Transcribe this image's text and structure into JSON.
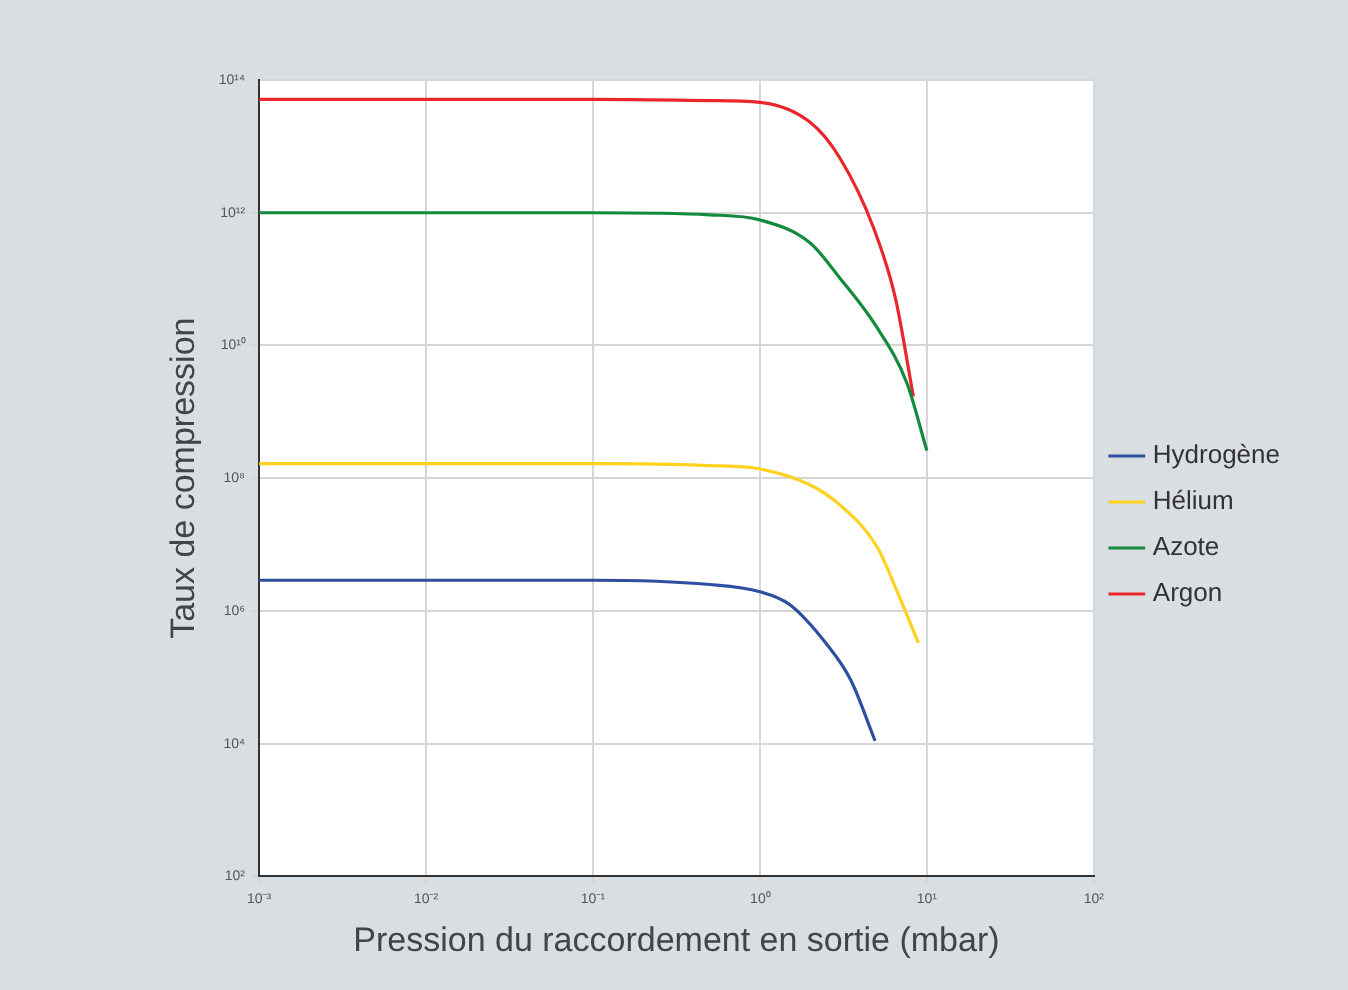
{
  "chart_data": {
    "type": "line",
    "xlabel": "Pression du raccordement en sortie (mbar)",
    "ylabel": "Taux de compression",
    "log": "xy",
    "grid": true,
    "legend": "right",
    "marker": "none",
    "line_style": "solid",
    "xlim": [
      0.001,
      100
    ],
    "xticks": [
      {
        "value": 0.001,
        "label": "10⁻³"
      },
      {
        "value": 0.01,
        "label": "10⁻²"
      },
      {
        "value": 0.1,
        "label": "10⁻¹"
      },
      {
        "value": 1,
        "label": "10⁰"
      },
      {
        "value": 10,
        "label": "10¹"
      },
      {
        "value": 100,
        "label": "10²"
      }
    ],
    "ylim": [
      100,
      100000000000000
    ],
    "yticks": [
      {
        "value": 100,
        "label": "10²"
      },
      {
        "value": 10000,
        "label": "10⁴"
      },
      {
        "value": 1000000,
        "label": "10⁶"
      },
      {
        "value": 100000000,
        "label": "10⁸"
      },
      {
        "value": 10000000000,
        "label": "10¹⁰"
      },
      {
        "value": 1000000000000,
        "label": "10¹²"
      },
      {
        "value": 100000000000000,
        "label": "10¹⁴"
      }
    ],
    "series": [
      {
        "name": "Hydrogène",
        "color": "#2e4fa0",
        "x": [
          0.001,
          0.1,
          0.5,
          1,
          1.5,
          2.5,
          3.5,
          4.9
        ],
        "values": [
          2900000,
          2900000,
          2500000,
          1950000,
          1260000,
          320000,
          91000,
          11000
        ]
      },
      {
        "name": "Hélium",
        "color": "#ffd21f",
        "x": [
          0.001,
          0.1,
          0.5,
          1,
          2,
          3,
          5,
          6.8,
          8.9
        ],
        "values": [
          166000000,
          166000000,
          155000000,
          138000000,
          79000000,
          40000000,
          9500000,
          1700000,
          330000
        ]
      },
      {
        "name": "Azote",
        "color": "#138a3e",
        "x": [
          0.001,
          0.1,
          0.5,
          1,
          2,
          3,
          5,
          7.6,
          10
        ],
        "values": [
          1000000000000,
          1000000000000,
          930000000000,
          780000000000,
          350000000000,
          105000000000,
          19000000000,
          2700000000,
          260000000
        ]
      },
      {
        "name": "Argon",
        "color": "#e8262b",
        "x": [
          0.001,
          0.1,
          0.5,
          1,
          2,
          3,
          4.8,
          6.5,
          8.3
        ],
        "values": [
          51000000000000,
          51000000000000,
          49000000000000,
          46000000000000,
          23000000000000,
          6800000000000,
          590000000000,
          50000000000,
          1700000000
        ]
      }
    ]
  }
}
